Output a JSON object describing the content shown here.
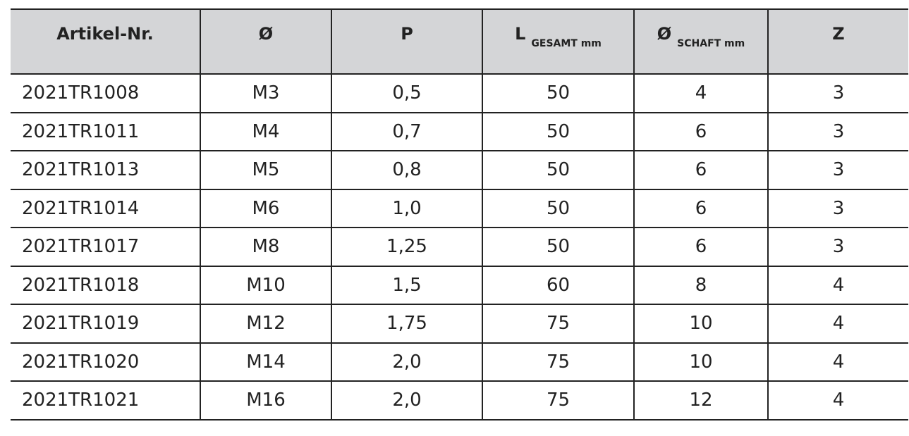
{
  "table": {
    "headers": [
      {
        "main": "Artikel-Nr.",
        "sub": ""
      },
      {
        "main": "Ø",
        "sub": ""
      },
      {
        "main": "P",
        "sub": ""
      },
      {
        "main": "L",
        "sub": "GESAMT mm"
      },
      {
        "main": "Ø",
        "sub": "SCHAFT mm"
      },
      {
        "main": "Z",
        "sub": ""
      }
    ],
    "rows": [
      [
        "2021TR1008",
        "M3",
        "0,5",
        "50",
        "4",
        "3"
      ],
      [
        "2021TR1011",
        "M4",
        "0,7",
        "50",
        "6",
        "3"
      ],
      [
        "2021TR1013",
        "M5",
        "0,8",
        "50",
        "6",
        "3"
      ],
      [
        "2021TR1014",
        "M6",
        "1,0",
        "50",
        "6",
        "3"
      ],
      [
        "2021TR1017",
        "M8",
        "1,25",
        "50",
        "6",
        "3"
      ],
      [
        "2021TR1018",
        "M10",
        "1,5",
        "60",
        "8",
        "4"
      ],
      [
        "2021TR1019",
        "M12",
        "1,75",
        "75",
        "10",
        "4"
      ],
      [
        "2021TR1020",
        "M14",
        "2,0",
        "75",
        "10",
        "4"
      ],
      [
        "2021TR1021",
        "M16",
        "2,0",
        "75",
        "12",
        "4"
      ]
    ]
  },
  "colors": {
    "header_bg": "#d4d5d7",
    "border": "#222222",
    "text": "#222222"
  }
}
